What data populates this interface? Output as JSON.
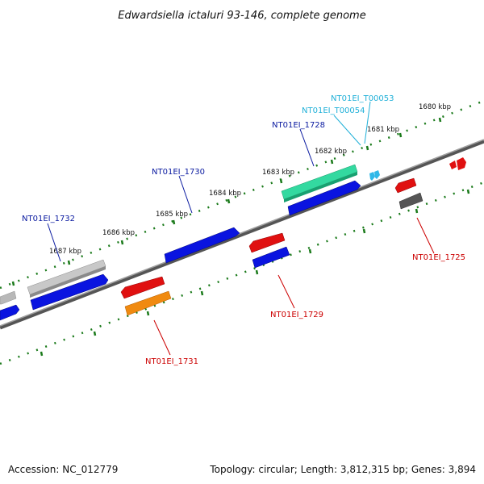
{
  "title": "Edwardsiella ictaluri 93-146, complete genome",
  "footer": {
    "accession": "Accession: NC_012779",
    "stats": "Topology: circular; Length: 3,812,315 bp; Genes: 3,894"
  },
  "colors": {
    "backbone": "#707070",
    "ticks": "#1a7a1a",
    "blue": "#0a14e0",
    "red": "#e01010",
    "gray": "#b8b8b8",
    "darkgray": "#555555",
    "orange": "#f08a10",
    "teal": "#33d9a0",
    "cyan": "#30b8e8",
    "label_blue": "#0a1aa0",
    "label_red": "#cc0000",
    "label_cyan": "#20b0d8"
  },
  "kbp_labels": [
    "1680 kbp",
    "1681 kbp",
    "1682 kbp",
    "1683 kbp",
    "1684 kbp",
    "1685 kbp",
    "1686 kbp",
    "1687 kbp"
  ],
  "gene_labels": {
    "NT01EI_T00053": "NT01EI_T00053",
    "NT01EI_T00054": "NT01EI_T00054",
    "NT01EI_1728": "NT01EI_1728",
    "NT01EI_1730": "NT01EI_1730",
    "NT01EI_1732": "NT01EI_1732",
    "NT01EI_1725": "NT01EI_1725",
    "NT01EI_1729": "NT01EI_1729",
    "NT01EI_1731": "NT01EI_1731"
  }
}
